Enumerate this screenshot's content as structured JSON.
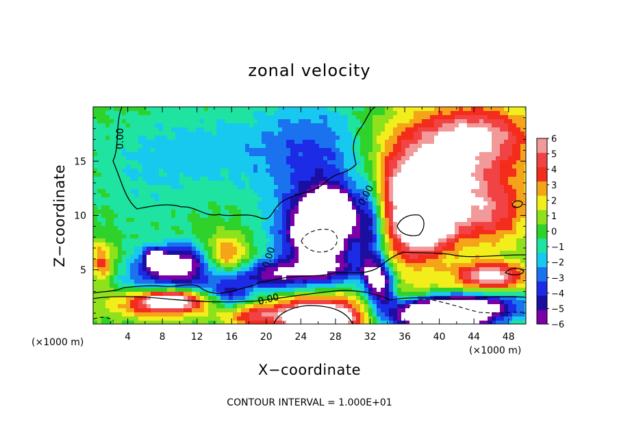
{
  "chart_data": {
    "type": "heatmap",
    "title": "zonal velocity",
    "xlabel": "X−coordinate",
    "ylabel": "Z−coordinate",
    "x_unit_label": "(×1000 m)",
    "y_unit_label": "(×1000 m)",
    "xlim": [
      0,
      50
    ],
    "ylim": [
      0,
      20
    ],
    "x_ticks": [
      4,
      8,
      12,
      16,
      20,
      24,
      28,
      32,
      36,
      40,
      44,
      48
    ],
    "y_ticks": [
      5,
      10,
      15
    ],
    "colorbar": {
      "min": -6,
      "max": 6,
      "ticks": [
        6,
        5,
        4,
        3,
        2,
        1,
        0,
        -1,
        -2,
        -3,
        -4,
        -5,
        -6
      ],
      "tick_labels": [
        "6",
        "5",
        "4",
        "3",
        "2",
        "1",
        "0",
        "−1",
        "−2",
        "−3",
        "−4",
        "−5",
        "−6"
      ],
      "colors": [
        "#7a00a8",
        "#1a0fa0",
        "#1c2be6",
        "#1a72ef",
        "#18c9ef",
        "#1fe3a0",
        "#2fd12b",
        "#8fe11c",
        "#f2ee1c",
        "#f5a41a",
        "#f42c1c",
        "#f14343",
        "#f29a9a"
      ],
      "saturated_color": "#ffffff"
    },
    "contour_labels": [
      "0.00",
      "0.00",
      "0.00",
      "0.00"
    ],
    "footer": "CONTOUR INTERVAL = 1.000E+01",
    "field": {
      "background": 0,
      "features": [
        {
          "x": 15,
          "z": 16,
          "rx": 13,
          "rz": 4,
          "v": -1.8
        },
        {
          "x": 26,
          "z": 16.5,
          "rx": 6,
          "rz": 5,
          "v": -2.4
        },
        {
          "x": 30,
          "z": 11.5,
          "rx": 5,
          "rz": 4,
          "v": -1.8
        },
        {
          "x": 6,
          "z": 12,
          "rx": 6,
          "rz": 5,
          "v": -0.8
        },
        {
          "x": 41,
          "z": 15,
          "rx": 10,
          "rz": 5,
          "v": 4.3
        },
        {
          "x": 44.5,
          "z": 17.5,
          "rx": 6,
          "rz": 2.5,
          "v": 3.6
        },
        {
          "x": 37.5,
          "z": 11.5,
          "rx": 5.5,
          "rz": 4,
          "v": 6.8
        },
        {
          "x": 38,
          "z": 9,
          "rx": 3,
          "rz": 1.8,
          "v": 7.2
        },
        {
          "x": 46,
          "z": 10,
          "rx": 4.5,
          "rz": 3,
          "v": 3.4
        },
        {
          "x": 36,
          "z": 6,
          "rx": 5,
          "rz": 2,
          "v": 2.6
        },
        {
          "x": 46,
          "z": 4.4,
          "rx": 4,
          "rz": 1.3,
          "v": 6.5
        },
        {
          "x": 26,
          "z": 8.5,
          "rx": 3.5,
          "rz": 3,
          "v": -7.2
        },
        {
          "x": 27.5,
          "z": 10.3,
          "rx": 2.2,
          "rz": 1.8,
          "v": -6.8
        },
        {
          "x": 26.8,
          "z": 8.7,
          "rx": 6.8,
          "rz": 5.2,
          "v": -2.9
        },
        {
          "x": 32,
          "z": 8.5,
          "rx": 1.5,
          "rz": 5,
          "v": -3.5
        },
        {
          "x": 32.8,
          "z": 4.5,
          "rx": 1.6,
          "rz": 2,
          "v": -4
        },
        {
          "x": 21,
          "z": 4.6,
          "rx": 4,
          "rz": 1.3,
          "v": -4
        },
        {
          "x": 27,
          "z": 5,
          "rx": 5,
          "rz": 1.2,
          "v": -3
        },
        {
          "x": 33.5,
          "z": 3,
          "rx": 1.5,
          "rz": 2,
          "v": -4.5
        },
        {
          "x": 8,
          "z": 5.5,
          "rx": 3.5,
          "rz": 1.8,
          "v": -3.8
        },
        {
          "x": 7.2,
          "z": 6,
          "rx": 1.1,
          "rz": 0.8,
          "v": -7
        },
        {
          "x": 11,
          "z": 5.8,
          "rx": 2.5,
          "rz": 1.5,
          "v": -4.2
        },
        {
          "x": 10,
          "z": 4.2,
          "rx": 9,
          "rz": 1.2,
          "v": -2.2
        },
        {
          "x": 16,
          "z": 2.5,
          "rx": 2,
          "rz": 1.4,
          "v": -3
        },
        {
          "x": 15,
          "z": 3,
          "rx": 7,
          "rz": 1.5,
          "v": -1.5
        },
        {
          "x": 15.5,
          "z": 6.5,
          "rx": 2.5,
          "rz": 1.8,
          "v": 3.5
        },
        {
          "x": 1,
          "z": 5.5,
          "rx": 1.5,
          "rz": 2,
          "v": 3.8
        },
        {
          "x": 8,
          "z": 1.8,
          "rx": 6,
          "rz": 1.3,
          "v": 4.4
        },
        {
          "x": 9,
          "z": 2.2,
          "rx": 3,
          "rz": 0.8,
          "v": 6.5
        },
        {
          "x": 18,
          "z": 0.8,
          "rx": 3,
          "rz": 1,
          "v": 3.5
        },
        {
          "x": 26,
          "z": 1.4,
          "rx": 6.5,
          "rz": 1.6,
          "v": 4.6
        },
        {
          "x": 26,
          "z": 0.4,
          "rx": 4.8,
          "rz": 1.3,
          "v": 7.5
        },
        {
          "x": 41.5,
          "z": 1,
          "rx": 7,
          "rz": 1.4,
          "v": -5.5
        },
        {
          "x": 40,
          "z": 0.7,
          "rx": 5,
          "rz": 1.2,
          "v": -7.5
        },
        {
          "x": 44,
          "z": 2,
          "rx": 6,
          "rz": 1,
          "v": -4
        },
        {
          "x": 37,
          "z": 3.2,
          "rx": 5,
          "rz": 1,
          "v": 1.5
        }
      ]
    }
  }
}
